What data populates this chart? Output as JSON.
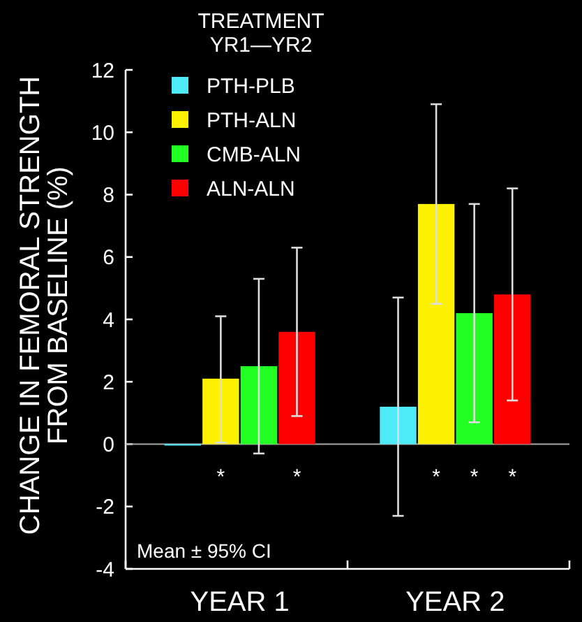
{
  "chart_data": {
    "type": "bar",
    "ylabel": "CHANGE IN FEMORAL STRENGTH\nFROM BASELINE (%)",
    "legend_title": "TREATMENT\nYR1—YR2",
    "categories": [
      "YEAR 1",
      "YEAR 2"
    ],
    "series": [
      {
        "name": "PTH-PLB",
        "color": "#4deaf8",
        "values": [
          0,
          1.2
        ],
        "errors": [
          null,
          [
            -2.3,
            4.7
          ]
        ],
        "value_labels": [
          null,
          null
        ]
      },
      {
        "name": "PTH-ALN",
        "color": "#fff200",
        "values": [
          2.1,
          7.7
        ],
        "errors": [
          [
            0.05,
            4.1
          ],
          [
            4.5,
            10.9
          ]
        ],
        "value_labels": [
          "*",
          "*"
        ]
      },
      {
        "name": "CMB-ALN",
        "color": "#22ff22",
        "values": [
          2.5,
          4.2
        ],
        "errors": [
          [
            -0.3,
            5.3
          ],
          [
            0.7,
            7.7
          ]
        ],
        "value_labels": [
          null,
          "*"
        ]
      },
      {
        "name": "ALN-ALN",
        "color": "#ff0000",
        "values": [
          3.6,
          4.8
        ],
        "errors": [
          [
            0.9,
            6.3
          ],
          [
            1.4,
            8.2
          ]
        ],
        "value_labels": [
          "*",
          "*"
        ]
      }
    ],
    "ylim": [
      -4,
      12
    ],
    "yticks": [
      -4,
      -2,
      0,
      2,
      4,
      6,
      8,
      10,
      12
    ],
    "legend": "top left",
    "ref_lines": [
      {
        "axis": "y",
        "value": 0,
        "color": "#aaaaaa"
      }
    ],
    "annotations": [
      "Mean ± 95% CI"
    ]
  }
}
